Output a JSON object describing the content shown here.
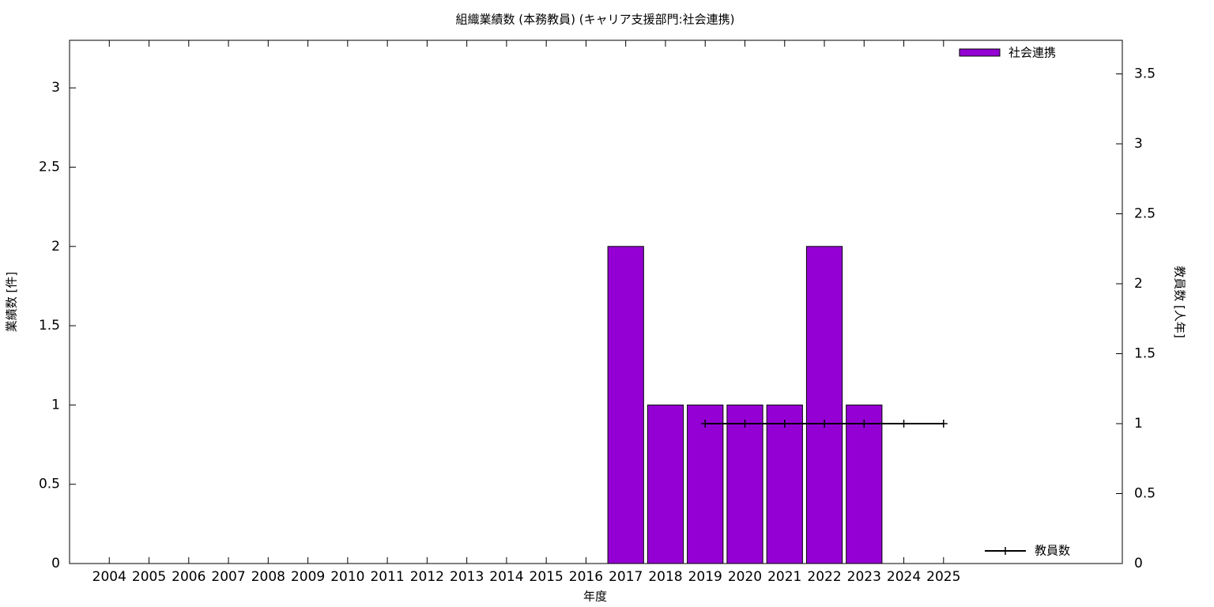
{
  "chart_data": {
    "type": "bar",
    "title": "組織業績数 (本務教員) (キャリア支援部門:社会連携)",
    "x_label": "年度",
    "y_label": "業績数 [件]",
    "y2_label": "教員数 [人年]",
    "categories": [
      "2004",
      "2005",
      "2006",
      "2007",
      "2008",
      "2009",
      "2010",
      "2011",
      "2012",
      "2013",
      "2014",
      "2015",
      "2016",
      "2017",
      "2018",
      "2019",
      "2020",
      "2021",
      "2022",
      "2023",
      "2024",
      "2025"
    ],
    "series": [
      {
        "name": "社会連携",
        "type": "bar",
        "color": "#9400d3",
        "values": [
          0,
          0,
          0,
          0,
          0,
          0,
          0,
          0,
          0,
          0,
          0,
          0,
          0,
          2,
          1,
          1,
          1,
          1,
          2,
          1,
          0,
          0
        ]
      },
      {
        "name": "教員数",
        "type": "line",
        "axis": "y2",
        "color": "#000000",
        "values": [
          null,
          null,
          null,
          null,
          null,
          null,
          null,
          null,
          null,
          null,
          null,
          null,
          null,
          null,
          null,
          1,
          1,
          1,
          1,
          1,
          1,
          1
        ]
      }
    ],
    "ylim": [
      0,
      3.3
    ],
    "yticks": [
      0,
      0.5,
      1,
      1.5,
      2,
      2.5,
      3
    ],
    "y2lim": [
      0,
      3.74
    ],
    "y2ticks": [
      0,
      0.5,
      1,
      1.5,
      2,
      2.5,
      3,
      3.5
    ]
  }
}
